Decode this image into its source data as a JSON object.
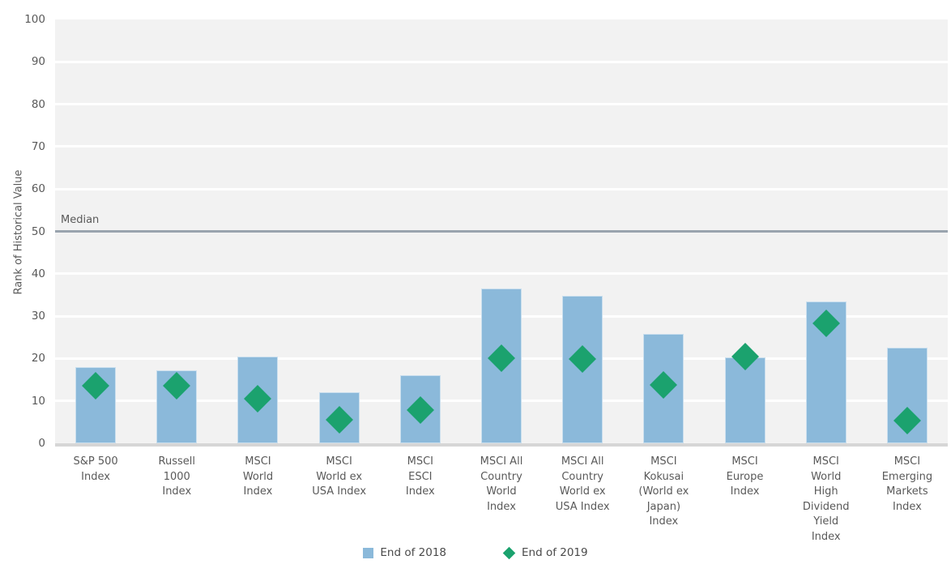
{
  "chart_data": {
    "type": "bar",
    "title": "",
    "xlabel": "",
    "ylabel": "Rank of Historical Value",
    "ylim": [
      0,
      100
    ],
    "yticks": [
      0,
      10,
      20,
      30,
      40,
      50,
      60,
      70,
      80,
      90,
      100
    ],
    "grid": "horizontal white lines on light-gray plot background",
    "legend_position": "bottom-center",
    "plot_bg_color": "#f2f2f2",
    "gridline_color": "#ffffff",
    "axis_text_color": "#595959",
    "baseline_color": "#d6d6d6",
    "median_line": {
      "value": 50,
      "label": "Median",
      "color": "#9aa4ae"
    },
    "categories": [
      "S&P 500 Index",
      "Russell 1000 Index",
      "MSCI World Index",
      "MSCI World ex USA Index",
      "MSCI ESCI Index",
      "MSCI All Country World Index",
      "MSCI All Country World ex USA Index",
      "MSCI Kokusai (World ex Japan) Index",
      "MSCI Europe Index",
      "MSCI World High Dividend Yield Index",
      "MSCI Emerging Markets Index"
    ],
    "category_label_lines": [
      [
        "S&P 500",
        "Index"
      ],
      [
        "Russell",
        "1000",
        "Index"
      ],
      [
        "MSCI",
        "World",
        "Index"
      ],
      [
        "MSCI",
        "World ex",
        "USA Index"
      ],
      [
        "MSCI",
        "ESCI",
        "Index"
      ],
      [
        "MSCI All",
        "Country",
        "World",
        "Index"
      ],
      [
        "MSCI All",
        "Country",
        "World ex",
        "USA Index"
      ],
      [
        "MSCI",
        "Kokusai",
        "(World ex",
        "Japan)",
        "Index"
      ],
      [
        "MSCI",
        "Europe",
        "Index"
      ],
      [
        "MSCI",
        "World",
        "High",
        "Dividend",
        "Yield",
        "Index"
      ],
      [
        "MSCI",
        "Emerging",
        "Markets",
        "Index"
      ]
    ],
    "series": [
      {
        "name": "End of 2018",
        "type": "bar",
        "marker": "square",
        "color": "#8bb9da",
        "values": [
          18.0,
          17.2,
          20.5,
          12.0,
          16.0,
          36.6,
          34.8,
          25.8,
          20.3,
          33.5,
          22.5
        ]
      },
      {
        "name": "End of 2019",
        "type": "scatter",
        "marker": "diamond",
        "color": "#1ba26e",
        "values": [
          13.6,
          13.5,
          10.5,
          5.5,
          7.9,
          20.0,
          19.8,
          13.8,
          20.5,
          28.3,
          5.3
        ]
      }
    ]
  }
}
